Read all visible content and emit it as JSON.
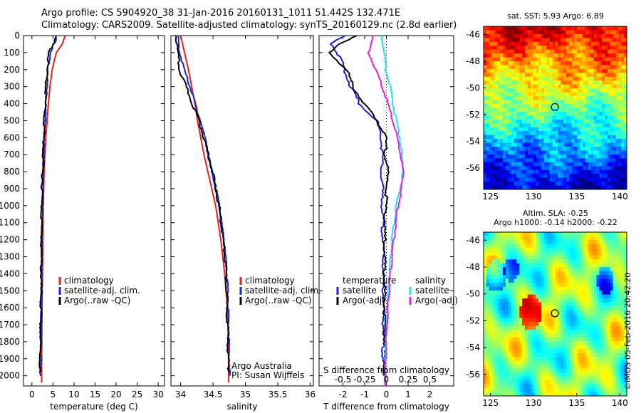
{
  "header": {
    "title_line1": "Argo profile: CS 5904920_38 31-Jan-2016 20160131_1011 51.442S 132.471E",
    "title_line2": "Climatology: CARS2009. Satellite-adjusted climatology: synTS_20160129.nc (2.8d earlier)"
  },
  "colors": {
    "climatology": "#e8201e",
    "satellite": "#1a22d8",
    "argo": "#000000",
    "sat_diff": "#25e0e8",
    "argo_diff": "#e61ee6"
  },
  "depth_ticks": [
    "0",
    "100",
    "200",
    "300",
    "400",
    "500",
    "600",
    "700",
    "800",
    "900",
    "1000",
    "1100",
    "1200",
    "1300",
    "1400",
    "1500",
    "1600",
    "1700",
    "1800",
    "1900",
    "2000"
  ],
  "chart_data": [
    {
      "type": "line",
      "xlabel": "temperature (deg C)",
      "xticks": [
        "0",
        "5",
        "10",
        "15",
        "20",
        "25",
        "30"
      ],
      "xlim": [
        -2,
        31.5
      ],
      "ylim": [
        2060,
        0
      ],
      "legend": [
        "climatology",
        "satellite-adj. clim.",
        "Argo(..raw -QC)"
      ],
      "series": [
        {
          "name": "climatology",
          "color": "#e8201e",
          "depth": [
            0,
            50,
            100,
            200,
            300,
            400,
            500,
            600,
            700,
            800,
            900,
            1000,
            1200,
            1400,
            1600,
            1800,
            2000,
            2040
          ],
          "values": [
            7.9,
            7.2,
            5.8,
            4.8,
            4.3,
            3.9,
            3.6,
            3.3,
            3.1,
            2.9,
            2.8,
            2.7,
            2.6,
            2.5,
            2.4,
            2.35,
            2.3,
            2.3
          ]
        },
        {
          "name": "satellite-adj. clim.",
          "color": "#1a22d8",
          "depth": [
            0,
            30,
            60,
            100,
            200,
            300,
            400,
            500,
            600,
            700,
            800,
            900,
            1000,
            1200,
            1400,
            1600,
            1800,
            2000
          ],
          "values": [
            6.0,
            5.9,
            5.1,
            4.4,
            3.9,
            3.6,
            3.4,
            3.2,
            3.0,
            2.85,
            2.75,
            2.65,
            2.55,
            2.45,
            2.4,
            2.3,
            2.2,
            2.1
          ]
        },
        {
          "name": "Argo(..raw -QC)",
          "color": "#000000",
          "depth": [
            5,
            40,
            70,
            100,
            200,
            300,
            400,
            500,
            600,
            700,
            800,
            900,
            1000,
            1200,
            1400,
            1600,
            1800,
            1980
          ],
          "values": [
            5.6,
            5.3,
            4.8,
            4.2,
            3.7,
            3.5,
            3.3,
            3.1,
            2.95,
            2.8,
            2.7,
            2.6,
            2.5,
            2.4,
            2.35,
            2.25,
            2.15,
            2.05
          ]
        }
      ]
    },
    {
      "type": "line",
      "xlabel": "salinity",
      "xticks": [
        "34",
        "34.5",
        "35",
        "35.5",
        "36"
      ],
      "xlim": [
        33.85,
        36.05
      ],
      "ylim": [
        2060,
        0
      ],
      "legend": [
        "climatology",
        "satellite-adj. clim.",
        "Argo(..raw -QC)"
      ],
      "annotation": [
        "Argo Australia",
        "PI: Susan Wijffels"
      ],
      "series": [
        {
          "name": "climatology",
          "color": "#e8201e",
          "depth": [
            0,
            100,
            200,
            300,
            400,
            500,
            600,
            700,
            800,
            900,
            1000,
            1200,
            1400,
            1600,
            1800,
            2000,
            2040
          ],
          "values": [
            34.0,
            34.06,
            34.12,
            34.17,
            34.22,
            34.26,
            34.31,
            34.36,
            34.42,
            34.48,
            34.54,
            34.62,
            34.68,
            34.72,
            34.74,
            34.74,
            34.74
          ]
        },
        {
          "name": "satellite-adj. clim.",
          "color": "#1a22d8",
          "depth": [
            0,
            100,
            200,
            300,
            400,
            500,
            600,
            700,
            800,
            900,
            1000,
            1200,
            1400,
            1600,
            1800,
            2000
          ],
          "values": [
            33.96,
            33.99,
            34.06,
            34.15,
            34.23,
            34.31,
            34.38,
            34.43,
            34.49,
            34.55,
            34.6,
            34.67,
            34.72,
            34.74,
            34.75,
            34.76
          ]
        },
        {
          "name": "Argo(..raw -QC)",
          "color": "#000000",
          "depth": [
            0,
            100,
            200,
            300,
            400,
            500,
            600,
            700,
            800,
            900,
            1000,
            1200,
            1400,
            1600,
            1800,
            1980
          ],
          "values": [
            33.94,
            33.96,
            33.99,
            34.09,
            34.19,
            34.29,
            34.37,
            34.44,
            34.5,
            34.55,
            34.6,
            34.67,
            34.71,
            34.73,
            34.74,
            34.75
          ]
        }
      ]
    },
    {
      "type": "line",
      "xlabel": "T difference from climatology",
      "xlabel2": "S difference from climatology",
      "xticks": [
        "-2",
        "-1",
        "0",
        "1",
        "2"
      ],
      "xticks2": [
        "-0.5",
        "-0.25",
        "0",
        "0.25",
        "0.5"
      ],
      "xlim": [
        -3.1,
        3.1
      ],
      "ylim": [
        2060,
        0
      ],
      "legend_left_title": "temperature",
      "legend_right_title": "salinity",
      "legend": [
        "satellite",
        "Argo(-adj)",
        "satellite",
        "Argo(-adj)"
      ],
      "series": [
        {
          "name": "satellite",
          "kind": "temperature",
          "color": "#1a22d8",
          "depth": [
            0,
            50,
            100,
            200,
            300,
            400,
            500,
            600,
            700,
            800,
            900,
            1000,
            1200,
            1400,
            1600,
            1800,
            2000
          ],
          "values": [
            -1.9,
            -2.5,
            -2.2,
            -1.9,
            -1.6,
            -1.2,
            -0.4,
            -0.2,
            -0.15,
            -0.2,
            -0.15,
            -0.15,
            -0.12,
            -0.1,
            -0.1,
            -0.1,
            -0.12
          ]
        },
        {
          "name": "Argo(-adj)",
          "kind": "temperature",
          "color": "#000000",
          "depth": [
            0,
            50,
            100,
            200,
            300,
            400,
            500,
            600,
            700,
            800,
            900,
            1000,
            1200,
            1400,
            1600,
            1800,
            2000
          ],
          "values": [
            -1.3,
            -2.2,
            -2.6,
            -1.8,
            -1.5,
            -1.0,
            -0.4,
            0.0,
            0.0,
            0.1,
            0.05,
            0.0,
            -0.05,
            -0.05,
            -0.05,
            -0.05,
            -0.05
          ]
        },
        {
          "name": "satellite",
          "kind": "salinity",
          "color": "#25e0e8",
          "depth": [
            0,
            100,
            200,
            300,
            400,
            500,
            600,
            700,
            800,
            900,
            1000,
            1200,
            1400,
            1600,
            1800,
            2000,
            2060
          ],
          "values": [
            -0.05,
            -0.02,
            0.0,
            0.05,
            0.08,
            0.12,
            0.16,
            0.18,
            0.2,
            0.16,
            0.12,
            0.07,
            0.04,
            0.02,
            0.0,
            -0.01,
            -0.01
          ]
        },
        {
          "name": "Argo(-adj)",
          "kind": "salinity",
          "color": "#e61ee6",
          "depth": [
            0,
            100,
            200,
            300,
            400,
            500,
            600,
            700,
            800,
            900,
            1000,
            1200,
            1400,
            1600,
            1800,
            2000,
            2060
          ],
          "values": [
            -0.15,
            -0.2,
            -0.12,
            -0.04,
            0.02,
            0.08,
            0.13,
            0.17,
            0.2,
            0.18,
            0.14,
            0.09,
            0.05,
            0.02,
            0.0,
            -0.01,
            -0.01
          ]
        }
      ]
    },
    {
      "type": "heatmap",
      "title": "sat. SST: 5.93  Argo: 6.89",
      "xticks": [
        "125",
        "130",
        "135",
        "140"
      ],
      "yticks": [
        "-46",
        "-48",
        "-50",
        "-52",
        "-54",
        "-56"
      ],
      "xlim": [
        124.2,
        140.8
      ],
      "ylim": [
        -57.6,
        -45.4
      ],
      "marker": {
        "lon": 132.471,
        "lat": -51.442
      }
    },
    {
      "type": "heatmap",
      "title": "Altim. SLA: -0.25",
      "title2": "Argo h1000: -0.14  h2000: -0.22",
      "xticks": [
        "125",
        "130",
        "135",
        "140"
      ],
      "yticks": [
        "-46",
        "-48",
        "-50",
        "-52",
        "-54",
        "-56"
      ],
      "xlim": [
        124.2,
        140.8
      ],
      "ylim": [
        -57.6,
        -45.4
      ],
      "marker": {
        "lon": 132.471,
        "lat": -51.442
      }
    }
  ],
  "footer": {
    "credit": "©IMOS 05-Feb-2016 20:42:20"
  }
}
